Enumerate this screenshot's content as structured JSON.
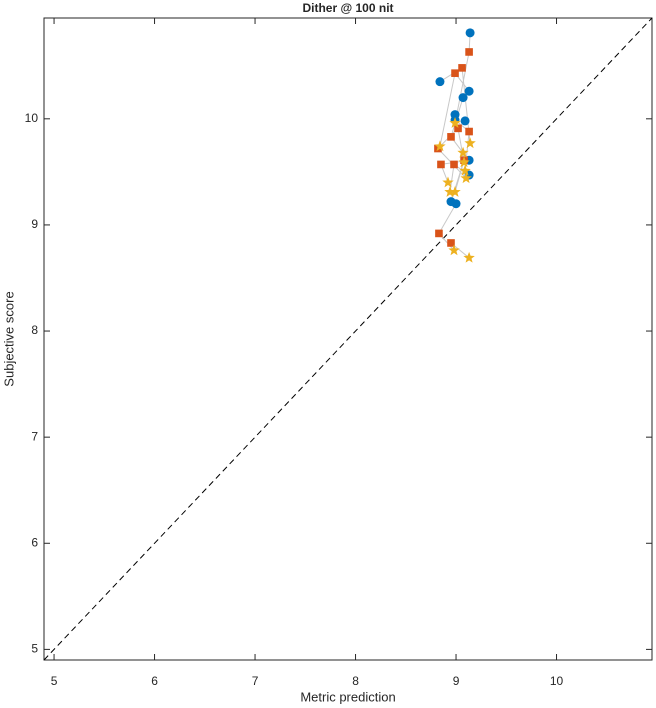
{
  "chart_data": {
    "type": "scatter",
    "title": "Dither @ 100 nit",
    "x_label": "Metric prediction",
    "y_label": "Subjective score",
    "xlim": [
      4.9,
      10.95
    ],
    "ylim": [
      4.9,
      10.95
    ],
    "xticks": [
      5,
      6,
      7,
      8,
      9,
      10
    ],
    "yticks": [
      5,
      6,
      7,
      8,
      9,
      10
    ],
    "series": [
      {
        "color": "#0072bd",
        "marker": "circle",
        "x": [
          9.14,
          8.84,
          9.13,
          9.07,
          8.99,
          8.99,
          9.09,
          9.13,
          9.13,
          8.95,
          9.0
        ],
        "values": [
          10.81,
          10.35,
          10.26,
          10.2,
          10.04,
          9.99,
          9.98,
          9.61,
          9.47,
          9.22,
          9.2
        ]
      },
      {
        "color": "#d95319",
        "marker": "square",
        "x": [
          9.13,
          9.06,
          8.99,
          8.95,
          9.02,
          9.13,
          8.82,
          8.85,
          8.98,
          9.08,
          8.83,
          8.95
        ],
        "values": [
          10.63,
          10.48,
          10.43,
          9.83,
          9.91,
          9.88,
          9.72,
          9.57,
          9.57,
          9.61,
          8.92,
          8.83
        ]
      },
      {
        "color": "#edb120",
        "marker": "star",
        "x": [
          8.99,
          9.14,
          8.84,
          9.07,
          9.08,
          9.09,
          9.1,
          8.92,
          8.94,
          8.99,
          8.98,
          9.13
        ],
        "values": [
          9.96,
          9.77,
          9.74,
          9.68,
          9.59,
          9.51,
          9.44,
          9.4,
          9.31,
          9.31,
          8.76,
          8.69
        ]
      }
    ]
  }
}
